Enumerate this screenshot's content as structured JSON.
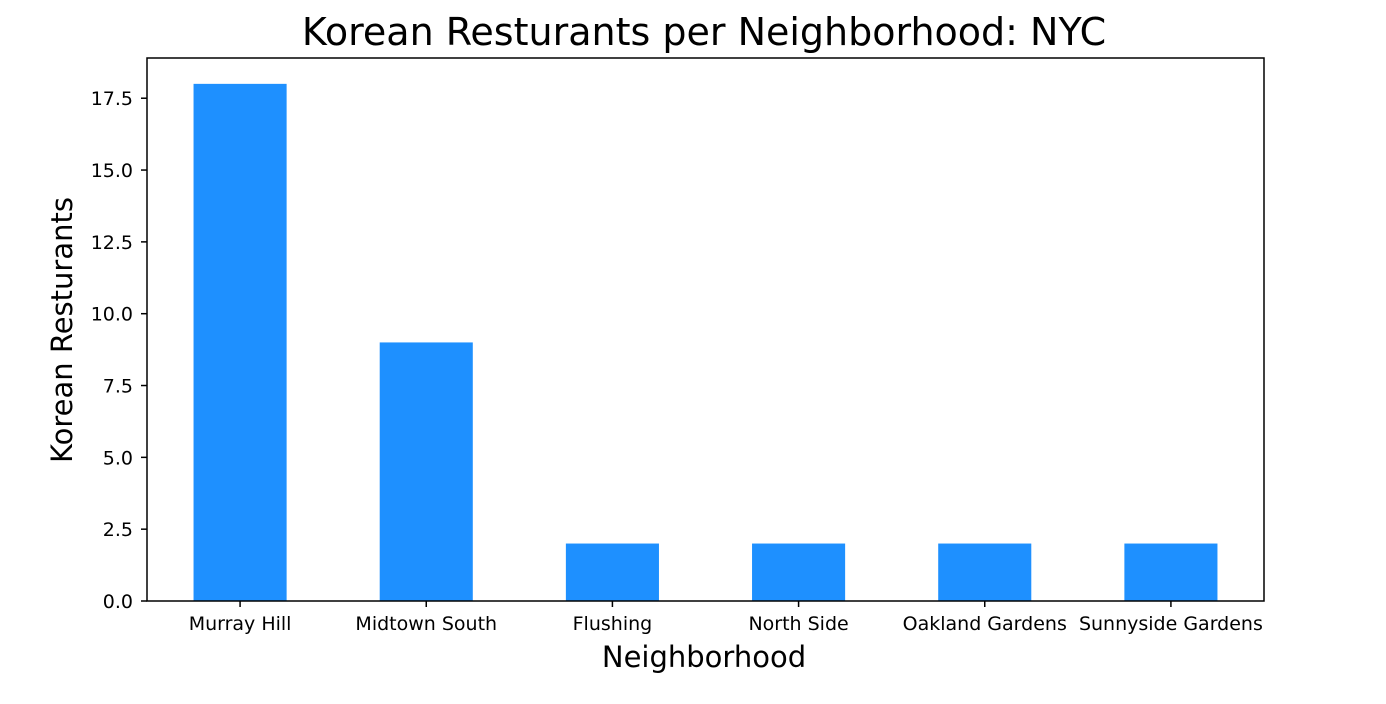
{
  "chart_data": {
    "type": "bar",
    "title": "Korean Resturants per Neighborhood: NYC",
    "xlabel": "Neighborhood",
    "ylabel": "Korean Resturants",
    "categories": [
      "Murray Hill",
      "Midtown South",
      "Flushing",
      "North Side",
      "Oakland Gardens",
      "Sunnyside Gardens"
    ],
    "values": [
      18,
      9,
      2,
      2,
      2,
      2
    ],
    "ylim": [
      0,
      18.9
    ],
    "yticks": [
      "0.0",
      "2.5",
      "5.0",
      "7.5",
      "10.0",
      "12.5",
      "15.0",
      "17.5"
    ],
    "bar_color": "#1e90ff",
    "grid": false,
    "legend": "none"
  }
}
